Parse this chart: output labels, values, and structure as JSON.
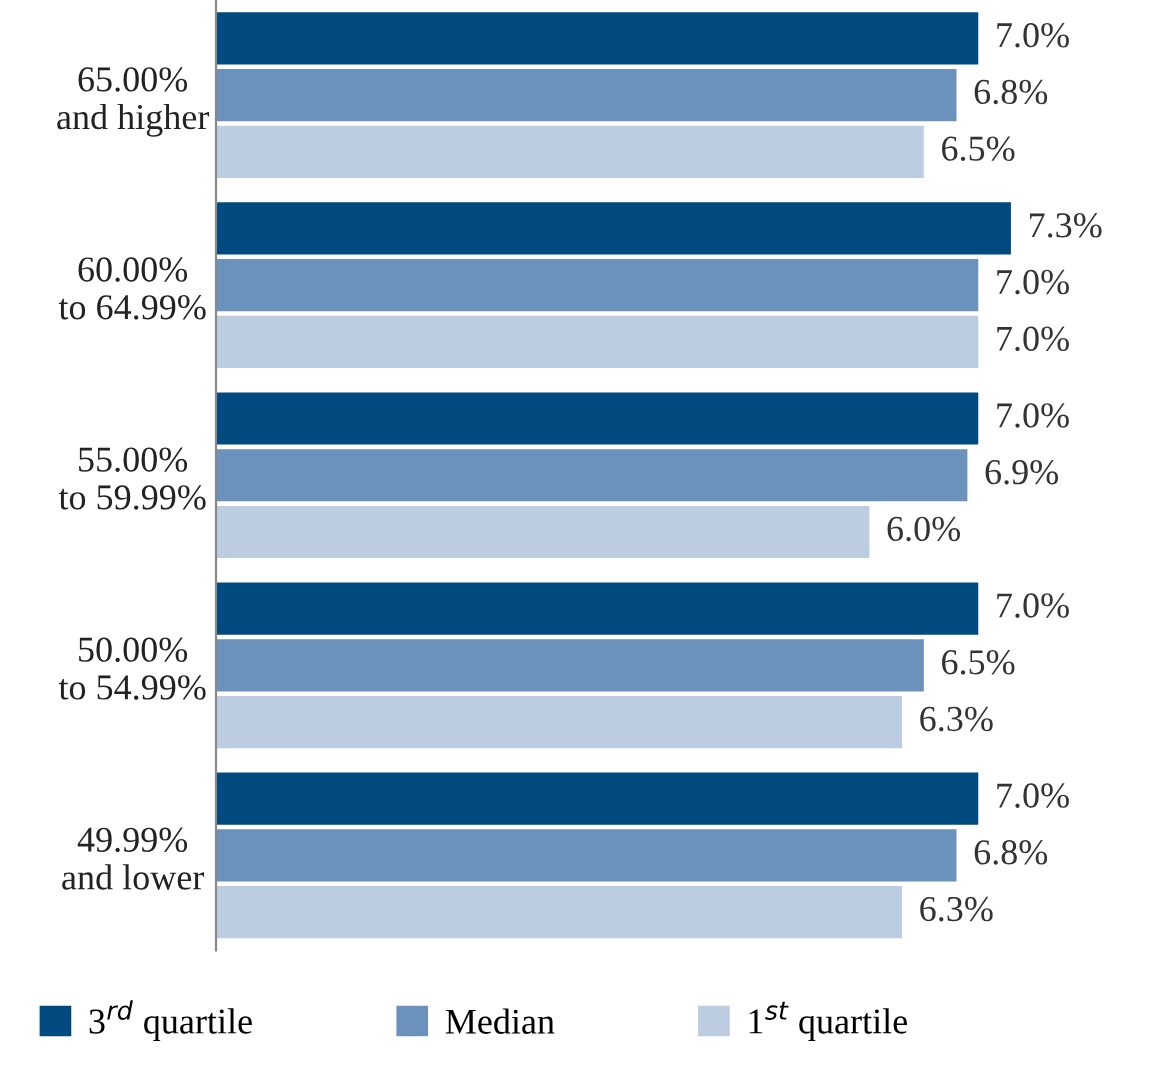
{
  "chart_data": {
    "type": "bar",
    "orientation": "horizontal",
    "categories": [
      "65.00%\nand higher",
      "60.00%\nto 64.99%",
      "55.00%\nto 59.99%",
      "50.00%\nto 54.99%",
      "49.99%\nand lower"
    ],
    "series": [
      {
        "name": "3$^{rd}$ quartile",
        "color": "#004a80",
        "values": [
          7.0,
          7.3,
          7.0,
          7.0,
          7.0
        ],
        "value_labels": [
          "7.0%",
          "7.3%",
          "7.0%",
          "7.0%",
          "7.0%"
        ]
      },
      {
        "name": "Median",
        "color": "#6b91bd",
        "values": [
          6.8,
          7.0,
          6.9,
          6.5,
          6.8
        ],
        "value_labels": [
          "6.8%",
          "7.0%",
          "6.9%",
          "6.5%",
          "6.8%"
        ]
      },
      {
        "name": "1$^{st}$ quartile",
        "color": "#bccde2",
        "values": [
          6.5,
          7.0,
          6.0,
          6.3,
          6.3
        ],
        "value_labels": [
          "6.5%",
          "7.0%",
          "6.0%",
          "6.3%",
          "6.3%"
        ]
      }
    ],
    "legend": "bottom",
    "grid": false
  }
}
